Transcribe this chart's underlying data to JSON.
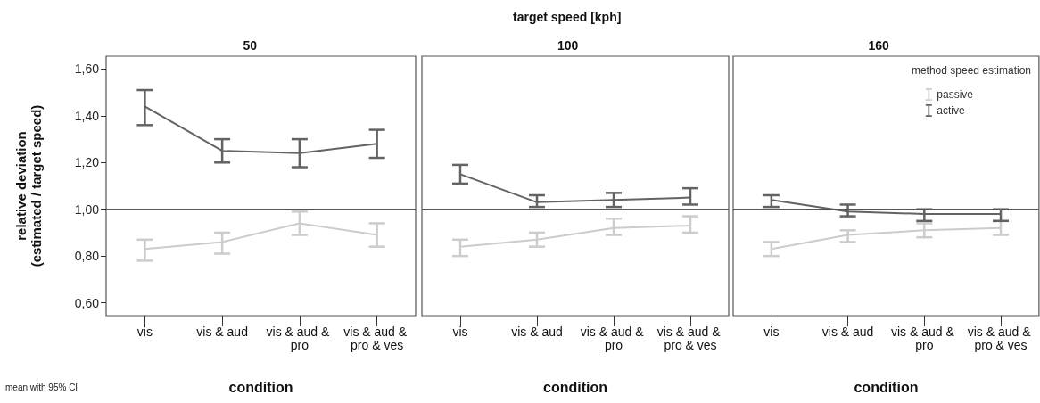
{
  "chart_data": [
    {
      "type": "line",
      "title": "50",
      "xlabel": "condition",
      "ylabel": "relative deviation\n(estimated / target speed)",
      "annotations": [
        "mean with 95% CI"
      ],
      "categories": [
        "vis",
        "vis & aud",
        "vis & aud & pro",
        "vis & aud & pro & ves"
      ],
      "series": [
        {
          "color": "#cccccc",
          "values": [
            0.83,
            0.86,
            0.94,
            0.89
          ],
          "errors": [
            [
              0.78,
              0.87
            ],
            [
              0.81,
              0.9
            ],
            [
              0.89,
              0.99
            ],
            [
              0.84,
              0.94
            ]
          ]
        },
        {
          "color": "#636363",
          "values": [
            1.44,
            1.25,
            1.24,
            1.28
          ],
          "errors": [
            [
              1.36,
              1.51
            ],
            [
              1.2,
              1.3
            ],
            [
              1.18,
              1.3
            ],
            [
              1.22,
              1.34
            ]
          ]
        }
      ],
      "ylim": [
        0.545,
        1.655
      ],
      "yticks": [
        {
          "value": 0.6,
          "label": "0,60"
        },
        {
          "value": 0.8,
          "label": "0,80"
        },
        {
          "value": 1.0,
          "label": "1,00"
        },
        {
          "value": 1.2,
          "label": "1,20"
        },
        {
          "value": 1.4,
          "label": "1,40"
        },
        {
          "value": 1.6,
          "label": "1,60"
        }
      ],
      "ref_lines": [
        {
          "axis": "y",
          "value": 1.0,
          "color": "#555555"
        }
      ],
      "grid": false,
      "legend": false,
      "marker": "none"
    },
    {
      "type": "line",
      "title": "100",
      "xlabel": "condition",
      "annotations": [
        "target speed [kph]"
      ],
      "categories": [
        "vis",
        "vis & aud",
        "vis & aud & pro",
        "vis & aud & pro & ves"
      ],
      "series": [
        {
          "color": "#cccccc",
          "values": [
            0.84,
            0.87,
            0.92,
            0.93
          ],
          "errors": [
            [
              0.8,
              0.87
            ],
            [
              0.84,
              0.9
            ],
            [
              0.89,
              0.96
            ],
            [
              0.9,
              0.97
            ]
          ]
        },
        {
          "color": "#636363",
          "values": [
            1.15,
            1.03,
            1.04,
            1.05
          ],
          "errors": [
            [
              1.11,
              1.19
            ],
            [
              1.01,
              1.06
            ],
            [
              1.01,
              1.07
            ],
            [
              1.02,
              1.09
            ]
          ]
        }
      ],
      "ylim": [
        0.545,
        1.655
      ],
      "tick_labels": "x",
      "ref_lines": [
        {
          "axis": "y",
          "value": 1.0,
          "color": "#555555"
        }
      ],
      "grid": false,
      "legend": false,
      "marker": "none"
    },
    {
      "type": "line",
      "title": "160",
      "xlabel": "condition",
      "legend_title": "method speed estimation",
      "categories": [
        "vis",
        "vis & aud",
        "vis & aud & pro",
        "vis & aud & pro & ves"
      ],
      "series": [
        {
          "name": "passive",
          "color": "#cccccc",
          "values": [
            0.83,
            0.89,
            0.91,
            0.92
          ],
          "errors": [
            [
              0.8,
              0.86
            ],
            [
              0.86,
              0.91
            ],
            [
              0.88,
              0.94
            ],
            [
              0.89,
              0.95
            ]
          ]
        },
        {
          "name": "active",
          "color": "#636363",
          "values": [
            1.04,
            0.99,
            0.98,
            0.98
          ],
          "errors": [
            [
              1.01,
              1.06
            ],
            [
              0.97,
              1.02
            ],
            [
              0.95,
              1.0
            ],
            [
              0.95,
              1.0
            ]
          ]
        }
      ],
      "ylim": [
        0.545,
        1.655
      ],
      "tick_labels": "x",
      "ref_lines": [
        {
          "axis": "y",
          "value": 1.0,
          "color": "#555555"
        }
      ],
      "grid": false,
      "legend": "top right",
      "marker": "none"
    }
  ]
}
